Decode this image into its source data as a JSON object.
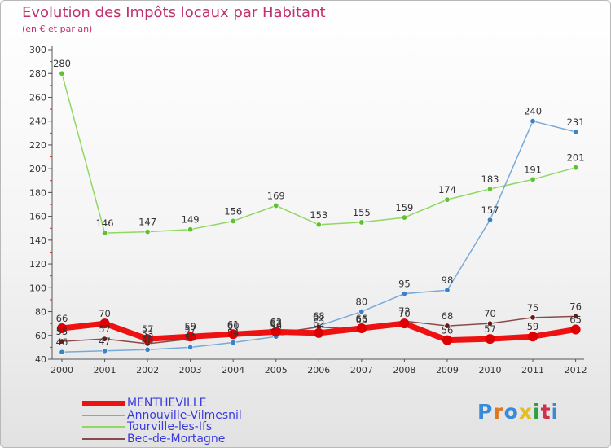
{
  "title": "Evolution des Impôts locaux par Habitant",
  "subtitle": "(en € et par an)",
  "brand": "Proxiti",
  "chart_data": {
    "type": "line",
    "x": [
      "2000",
      "2001",
      "2002",
      "2003",
      "2004",
      "2005",
      "2006",
      "2007",
      "2008",
      "2009",
      "2010",
      "2011",
      "2012"
    ],
    "ylim": [
      40,
      300
    ],
    "yticks": [
      40,
      60,
      80,
      100,
      120,
      140,
      160,
      180,
      200,
      220,
      240,
      260,
      280,
      300
    ],
    "grid": false,
    "legend_position": "bottom-left",
    "series": [
      {
        "name": "Tourville-les-Ifs",
        "color": "#90d860",
        "marker": "#5fc030",
        "width": 1.5,
        "values": [
          280,
          146,
          147,
          149,
          156,
          169,
          153,
          155,
          159,
          174,
          183,
          191,
          201
        ]
      },
      {
        "name": "Annouville-Vilmesnil",
        "color": "#78aad8",
        "marker": "#3a82c8",
        "width": 1.5,
        "values": [
          46,
          47,
          48,
          50,
          54,
          59,
          68,
          80,
          95,
          98,
          157,
          240,
          231
        ]
      },
      {
        "name": "Bec-de-Mortagne",
        "color": "#8a4a4a",
        "marker": "#6a1818",
        "width": 1.5,
        "values": [
          55,
          57,
          53,
          57,
          60,
          62,
          67,
          65,
          72,
          68,
          70,
          75,
          76
        ]
      },
      {
        "name": "MENTHEVILLE",
        "color": "#ee1111",
        "marker": "#dd0000",
        "width": 7,
        "values": [
          66,
          70,
          57,
          59,
          61,
          63,
          62,
          66,
          70,
          56,
          57,
          59,
          65
        ]
      }
    ],
    "data_labels": [
      {
        "series": "Tourville-les-Ifs",
        "labels": [
          "280",
          "146",
          "147",
          "149",
          "156",
          "169",
          "153",
          "155",
          "159",
          "174",
          "183",
          "191",
          "201"
        ]
      },
      {
        "series": "Annouville-Vilmesnil",
        "labels": [
          "46",
          "47",
          "48",
          "50",
          "54",
          "59",
          "68",
          "80",
          "95",
          "98",
          "157",
          "240",
          "231"
        ]
      },
      {
        "series": "Bec-de-Mortagne",
        "labels": [
          "55",
          "57",
          "53",
          "57",
          "60",
          "62",
          "67",
          "65",
          "72",
          "68",
          "70",
          "75",
          "76"
        ]
      },
      {
        "series": "MENTHEVILLE",
        "labels": [
          "66",
          "70",
          "57",
          "59",
          "61",
          "63",
          "62",
          "66",
          "70",
          "56",
          "57",
          "59",
          "65"
        ]
      }
    ],
    "legend_order": [
      "MENTHEVILLE",
      "Annouville-Vilmesnil",
      "Tourville-les-Ifs",
      "Bec-de-Mortagne"
    ],
    "axis_color": "#555555",
    "minor_tick_color": "#dd2222"
  },
  "logo_colors": [
    "#3a8ad8",
    "#e07820",
    "#3a8ad8",
    "#e0c020",
    "#2aa040",
    "#d03050",
    "#3a8ad8"
  ]
}
